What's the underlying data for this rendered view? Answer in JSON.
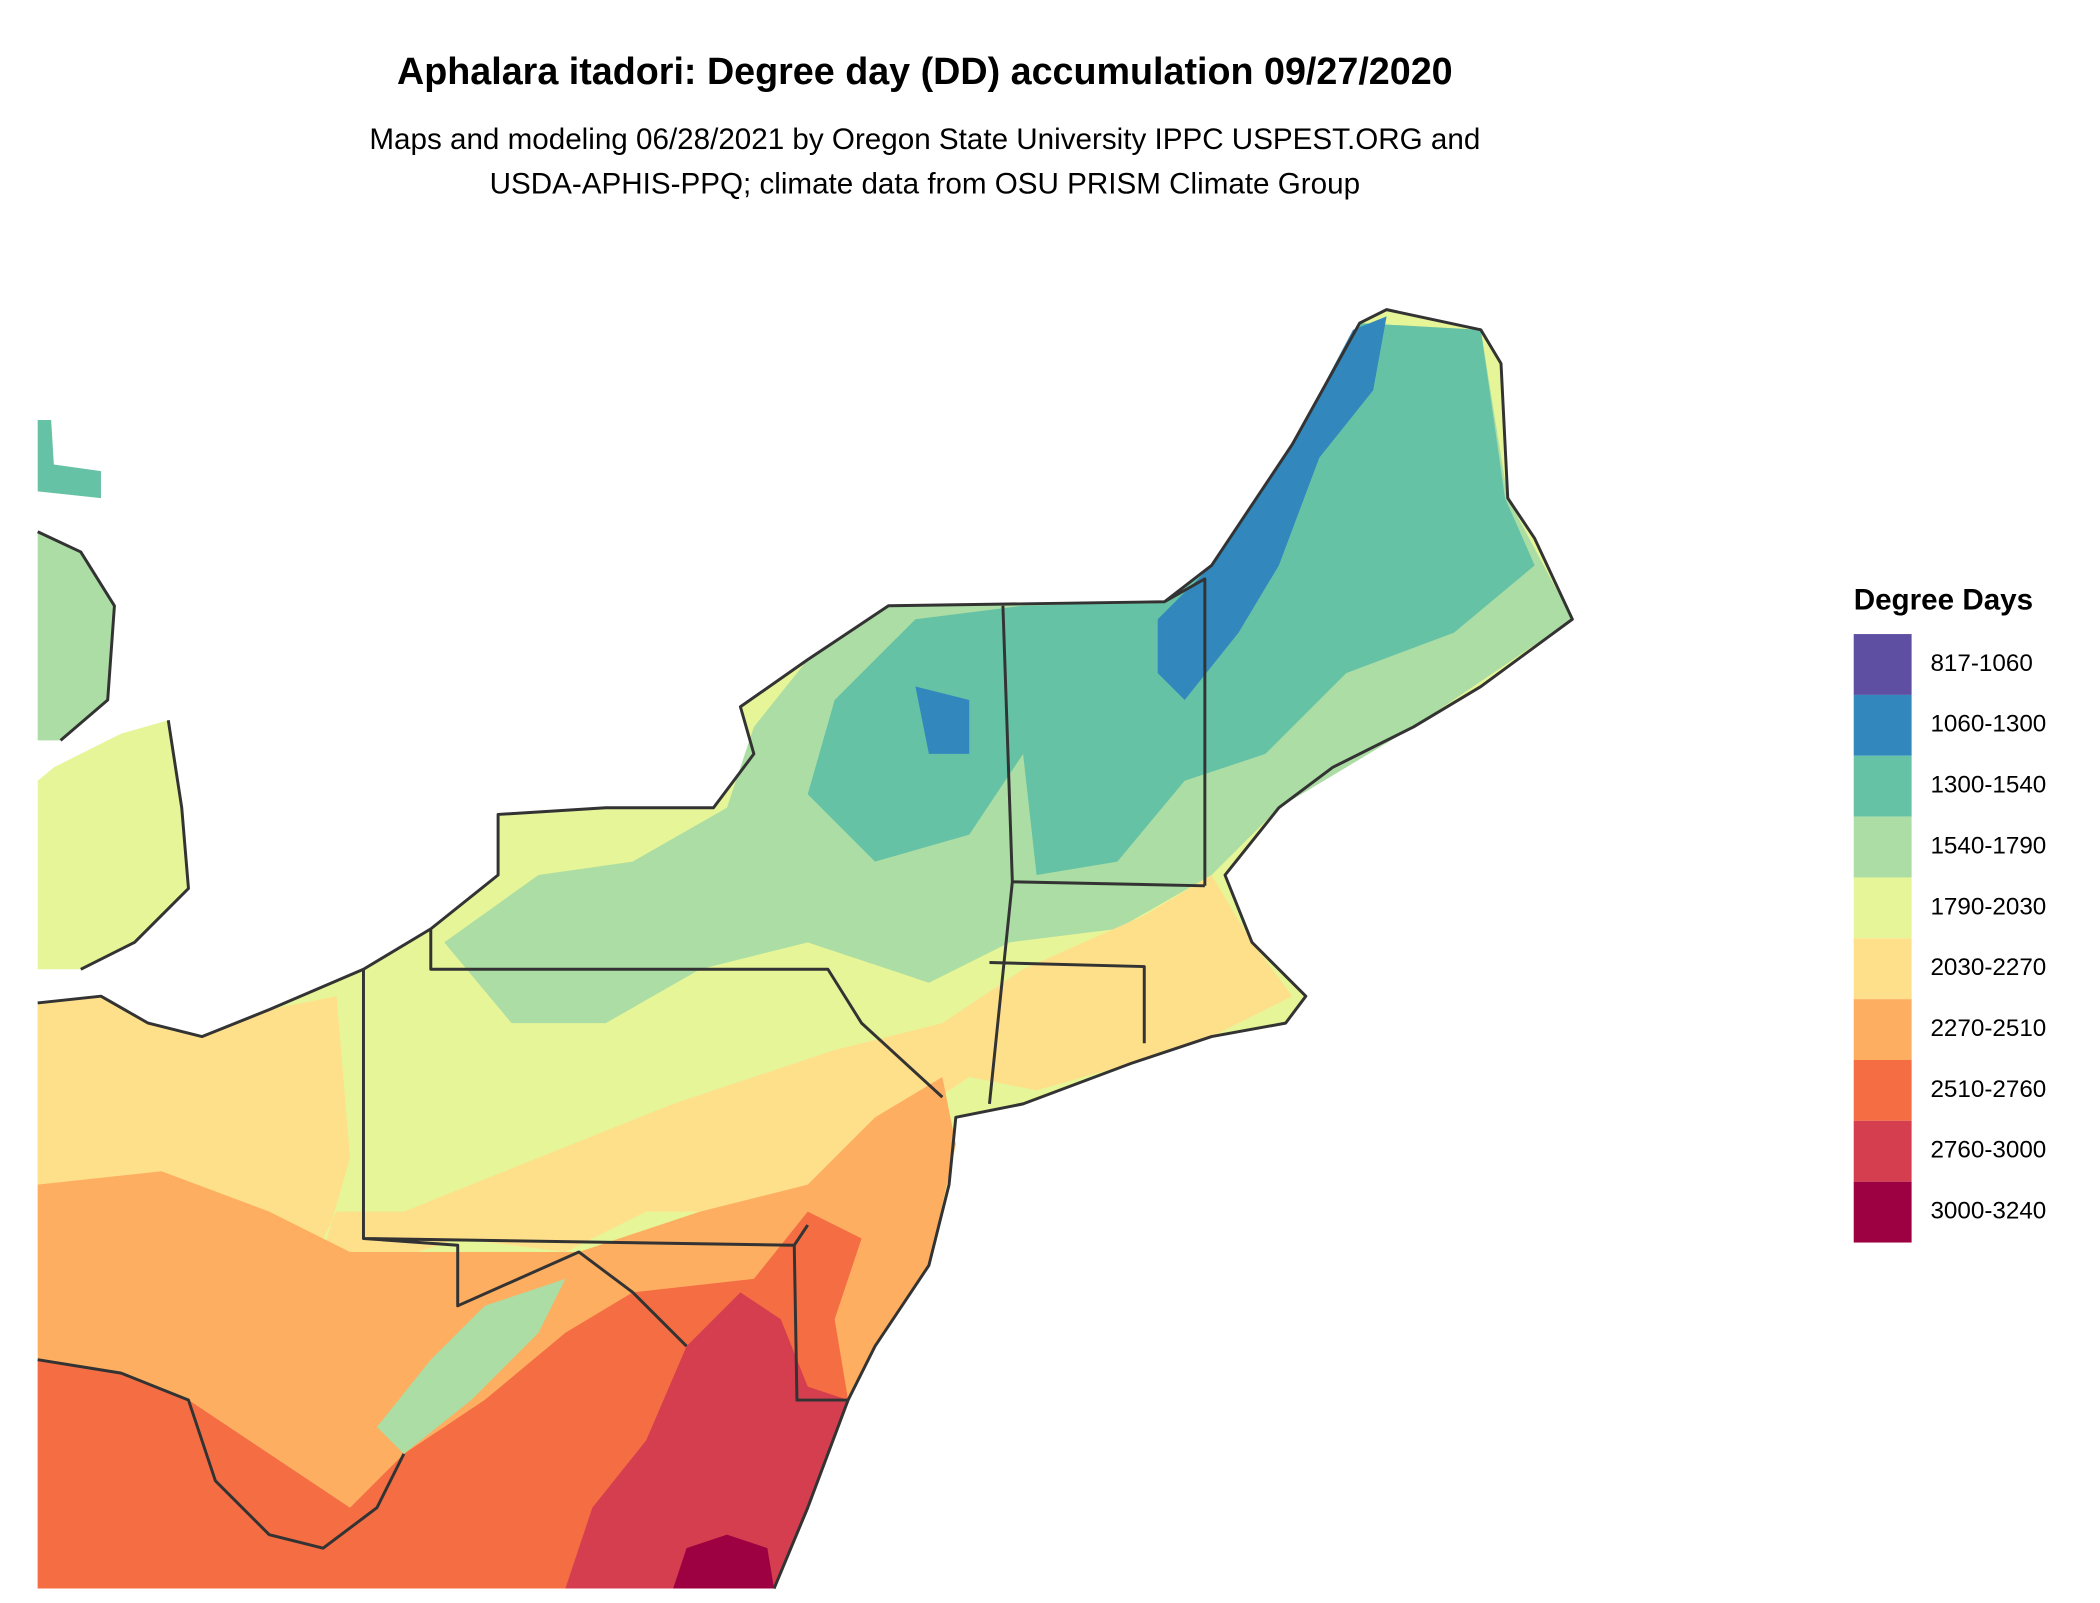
{
  "header": {
    "title": "Aphalara itadori: Degree day (DD) accumulation 09/27/2020",
    "subtitle": [
      "Maps and modeling 06/28/2021 by Oregon State University IPPC USPEST.ORG and",
      "USDA-APHIS-PPQ; climate data from OSU PRISM Climate Group"
    ]
  },
  "legend": {
    "title": "Degree Days",
    "items": [
      {
        "label": "817-1060",
        "color": "#5e4fa2"
      },
      {
        "label": "1060-1300",
        "color": "#3288bd"
      },
      {
        "label": "1300-1540",
        "color": "#66c2a5"
      },
      {
        "label": "1540-1790",
        "color": "#abdda4"
      },
      {
        "label": "1790-2030",
        "color": "#e6f598"
      },
      {
        "label": "2030-2270",
        "color": "#fee08b"
      },
      {
        "label": "2270-2510",
        "color": "#fdae61"
      },
      {
        "label": "2510-2760",
        "color": "#f46d43"
      },
      {
        "label": "2760-3000",
        "color": "#d53e4f"
      },
      {
        "label": "3000-3240",
        "color": "#9e0142"
      }
    ]
  }
}
